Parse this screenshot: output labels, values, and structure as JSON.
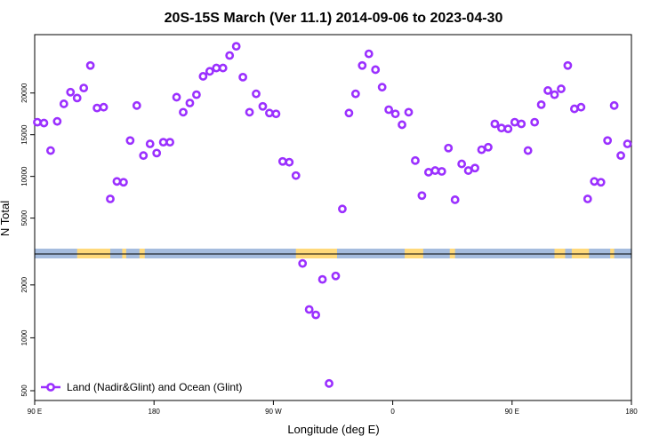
{
  "chart_data": {
    "type": "scatter",
    "title": "20S-15S March (Ver 11.1)   2014-09-06 to 2023-04-30",
    "xlabel": "Longitude (deg E)",
    "ylabel": "N Total",
    "x_ticks": [
      {
        "value": 90,
        "label": "90 E"
      },
      {
        "value": 180,
        "label": "180"
      },
      {
        "value": 270,
        "label": "90 W"
      },
      {
        "value": 360,
        "label": "0"
      },
      {
        "value": 450,
        "label": "90 E"
      },
      {
        "value": 540,
        "label": "180"
      }
    ],
    "xlim": [
      90,
      540
    ],
    "upper_panel": {
      "scale": "linear",
      "ylim": [
        700,
        27000
      ],
      "y_ticks": [
        {
          "value": 5000,
          "label": "5000"
        },
        {
          "value": 10000,
          "label": "10000"
        },
        {
          "value": 15000,
          "label": "15000"
        },
        {
          "value": 20000,
          "label": "20000"
        }
      ]
    },
    "lower_panel": {
      "scale": "log",
      "ylim": [
        440,
        3000
      ],
      "y_ticks": [
        {
          "value": 500,
          "label": "500"
        },
        {
          "value": 1000,
          "label": "1000"
        },
        {
          "value": 2000,
          "label": "2000"
        }
      ]
    },
    "land_ocean_strip": {
      "ocean_color": "#a5bcde",
      "land_color": "#ffd97a",
      "land_segments": [
        [
          122,
          147
        ],
        [
          156,
          159
        ],
        [
          169,
          173
        ],
        [
          287,
          318
        ],
        [
          369,
          383
        ],
        [
          403,
          407
        ],
        [
          482,
          490
        ],
        [
          495,
          508
        ],
        [
          524,
          527
        ]
      ]
    },
    "series": [
      {
        "name": "Land (Nadir&Glint) and Ocean (Glint)",
        "color": "#9b30ff",
        "marker": "open-circle",
        "points": [
          [
            92,
            16500
          ],
          [
            97,
            16400
          ],
          [
            102,
            13100
          ],
          [
            107,
            16600
          ],
          [
            112,
            18700
          ],
          [
            117,
            20100
          ],
          [
            122,
            19400
          ],
          [
            127,
            20600
          ],
          [
            132,
            23300
          ],
          [
            137,
            18200
          ],
          [
            142,
            18300
          ],
          [
            147,
            7300
          ],
          [
            152,
            9400
          ],
          [
            157,
            9300
          ],
          [
            162,
            14300
          ],
          [
            167,
            18500
          ],
          [
            172,
            12500
          ],
          [
            177,
            13900
          ],
          [
            182,
            12800
          ],
          [
            187,
            14100
          ],
          [
            192,
            14100
          ],
          [
            197,
            19500
          ],
          [
            202,
            17700
          ],
          [
            207,
            18800
          ],
          [
            212,
            19800
          ],
          [
            217,
            22000
          ],
          [
            222,
            22600
          ],
          [
            227,
            23000
          ],
          [
            232,
            23000
          ],
          [
            237,
            24500
          ],
          [
            242,
            25600
          ],
          [
            247,
            21900
          ],
          [
            252,
            17700
          ],
          [
            257,
            19900
          ],
          [
            262,
            18400
          ],
          [
            267,
            17600
          ],
          [
            272,
            17500
          ],
          [
            277,
            11800
          ],
          [
            282,
            11700
          ],
          [
            287,
            10100
          ],
          [
            292,
            2650
          ],
          [
            297,
            1450
          ],
          [
            302,
            1350
          ],
          [
            307,
            2150
          ],
          [
            312,
            550
          ],
          [
            317,
            2250
          ],
          [
            322,
            6100
          ],
          [
            327,
            17600
          ],
          [
            332,
            19900
          ],
          [
            337,
            23300
          ],
          [
            342,
            24700
          ],
          [
            347,
            22800
          ],
          [
            352,
            20700
          ],
          [
            357,
            18000
          ],
          [
            362,
            17500
          ],
          [
            367,
            16200
          ],
          [
            372,
            17700
          ],
          [
            377,
            11900
          ],
          [
            382,
            7700
          ],
          [
            387,
            10500
          ],
          [
            392,
            10700
          ],
          [
            397,
            10600
          ],
          [
            402,
            13400
          ],
          [
            407,
            7200
          ],
          [
            412,
            11500
          ],
          [
            417,
            10700
          ],
          [
            422,
            11000
          ],
          [
            427,
            13200
          ],
          [
            432,
            13500
          ],
          [
            437,
            16300
          ],
          [
            442,
            15800
          ],
          [
            447,
            15700
          ],
          [
            452,
            16500
          ],
          [
            457,
            16300
          ],
          [
            462,
            13100
          ],
          [
            467,
            16500
          ],
          [
            472,
            18600
          ],
          [
            477,
            20300
          ],
          [
            482,
            19800
          ],
          [
            487,
            20500
          ],
          [
            492,
            23300
          ],
          [
            497,
            18100
          ],
          [
            502,
            18300
          ],
          [
            507,
            7300
          ],
          [
            512,
            9400
          ],
          [
            517,
            9300
          ],
          [
            522,
            14300
          ],
          [
            527,
            18500
          ],
          [
            532,
            12500
          ],
          [
            537,
            13900
          ]
        ]
      }
    ]
  }
}
